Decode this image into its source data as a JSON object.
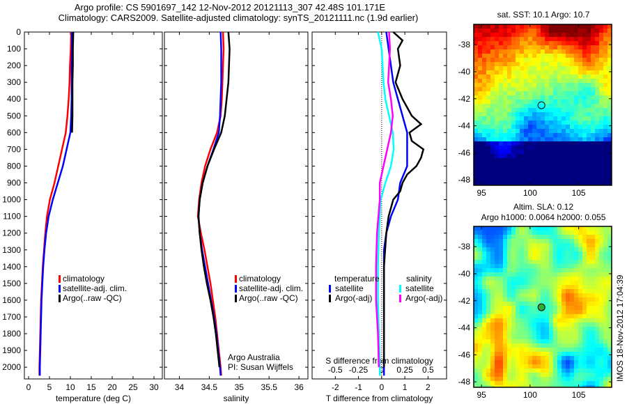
{
  "title_line1": "Argo profile: CS 5901697_142 12-Nov-2012 20121113_307 42.48S 101.171E",
  "title_line2": "Climatology: CARS2009. Satellite-adjusted climatology: synTS_20121111.nc (1.9d earlier)",
  "colors": {
    "climatology": "#ff0000",
    "satellite": "#0000ff",
    "argo": "#000000",
    "sal_satellite": "#00ffff",
    "sal_argo": "#ff00ff"
  },
  "chart_data": [
    {
      "type": "line",
      "xlabel": "temperature (deg C)",
      "ylabel": "",
      "xlim": [
        -1,
        32
      ],
      "ylim": [
        2070,
        0
      ],
      "xticks": [
        "0",
        "5",
        "10",
        "15",
        "20",
        "25",
        "30"
      ],
      "yticks": [
        "0",
        "100",
        "200",
        "300",
        "400",
        "500",
        "600",
        "700",
        "800",
        "900",
        "1000",
        "1100",
        "1200",
        "1300",
        "1400",
        "1500",
        "1600",
        "1700",
        "1800",
        "1900",
        "2000"
      ],
      "legend": [
        "climatology",
        "satellite-adj. clim.",
        "Argo(..raw -QC)"
      ],
      "series": [
        {
          "name": "climatology",
          "depth": [
            0,
            100,
            200,
            300,
            400,
            500,
            600,
            700,
            800,
            900,
            1000,
            1100,
            1200,
            1300,
            1400,
            1500,
            1600,
            1700,
            1800,
            1900,
            2000,
            2050
          ],
          "values": [
            10.2,
            10.1,
            9.9,
            9.8,
            9.6,
            9.3,
            8.9,
            8.0,
            7.1,
            6.2,
            5.1,
            4.4,
            4.0,
            3.7,
            3.4,
            3.2,
            3.0,
            2.9,
            2.8,
            2.7,
            2.6,
            2.6
          ]
        },
        {
          "name": "satellite-adj. clim.",
          "depth": [
            0,
            100,
            200,
            300,
            400,
            500,
            600,
            700,
            800,
            900,
            1000,
            1100,
            1200,
            1300,
            1400,
            1500,
            1600,
            1700,
            1800,
            1900,
            2000,
            2050
          ],
          "values": [
            10.4,
            10.4,
            10.3,
            10.3,
            10.3,
            10.2,
            10.0,
            9.1,
            8.2,
            7.0,
            5.8,
            4.8,
            4.2,
            3.8,
            3.5,
            3.3,
            3.1,
            3.0,
            2.9,
            2.8,
            2.7,
            2.7
          ]
        },
        {
          "name": "Argo(..raw -QC)",
          "depth": [
            0,
            100,
            200,
            300,
            400,
            500,
            600
          ],
          "values": [
            10.7,
            10.6,
            10.6,
            10.5,
            10.5,
            10.5,
            10.4
          ]
        }
      ]
    },
    {
      "type": "line",
      "xlabel": "salinity",
      "xlim": [
        33.75,
        36.15
      ],
      "ylim": [
        2070,
        0
      ],
      "xticks": [
        "34",
        "34.5",
        "35",
        "35.5",
        "36"
      ],
      "legend": [
        "climatology",
        "satellite-adj. clim.",
        "Argo(..raw -QC)"
      ],
      "annotation": [
        "Argo Australia",
        "PI: Susan Wijffels"
      ],
      "series": [
        {
          "name": "climatology",
          "depth": [
            0,
            100,
            200,
            300,
            400,
            500,
            600,
            700,
            800,
            900,
            1000,
            1100,
            1200,
            1300,
            1400,
            1500,
            1600,
            1700,
            1800,
            1900,
            2000,
            2050
          ],
          "values": [
            34.73,
            34.74,
            34.73,
            34.72,
            34.71,
            34.69,
            34.63,
            34.52,
            34.43,
            34.37,
            34.33,
            34.31,
            34.36,
            34.42,
            34.47,
            34.52,
            34.56,
            34.6,
            34.63,
            34.66,
            34.69,
            34.7
          ]
        },
        {
          "name": "satellite-adj. clim.",
          "depth": [
            0,
            100,
            200,
            300,
            400,
            500,
            600,
            700,
            800,
            900,
            1000,
            1100,
            1200,
            1300,
            1400,
            1500,
            1600,
            1700,
            1800,
            1900,
            2000,
            2050
          ],
          "values": [
            34.69,
            34.7,
            34.7,
            34.7,
            34.69,
            34.68,
            34.66,
            34.57,
            34.47,
            34.39,
            34.34,
            34.32,
            34.34,
            34.38,
            34.43,
            34.48,
            34.53,
            34.58,
            34.62,
            34.65,
            34.68,
            34.69
          ]
        },
        {
          "name": "Argo(..raw -QC)",
          "depth": [
            0,
            100,
            200,
            300,
            400,
            500,
            600,
            700,
            800,
            900,
            1000,
            1100,
            1200,
            1300,
            1400,
            1500,
            1600,
            1700,
            1800,
            1900,
            2000
          ],
          "values": [
            34.82,
            34.84,
            34.83,
            34.82,
            34.79,
            34.76,
            34.7,
            34.58,
            34.47,
            34.39,
            34.34,
            34.32,
            34.34,
            34.37,
            34.41,
            34.46,
            34.52,
            34.57,
            34.61,
            34.64,
            34.67
          ]
        }
      ]
    },
    {
      "type": "line",
      "xlabel": "T difference from climatology",
      "x2label": "S difference from climatology",
      "xlim": [
        -3,
        2.8
      ],
      "ylim": [
        2070,
        0
      ],
      "xticks": [
        "-2",
        "-1",
        "0",
        "1",
        "2"
      ],
      "x2ticks": [
        "-0.5",
        "-0.25",
        "0",
        "0.25",
        "0.5"
      ],
      "legend_titles": [
        "temperature",
        "salinity"
      ],
      "legend": [
        "satellite",
        "Argo(-adj)",
        "satellite",
        "Argo(-adj)"
      ],
      "series": [
        {
          "name": "temperature satellite",
          "depth": [
            0,
            100,
            200,
            300,
            400,
            500,
            600,
            700,
            800,
            900,
            1000,
            1100,
            1200,
            1300,
            1400,
            1500,
            1600,
            1700,
            1800,
            1900,
            2000,
            2050
          ],
          "values": [
            0.2,
            0.3,
            0.4,
            0.5,
            0.7,
            0.9,
            1.1,
            1.1,
            1.1,
            0.8,
            0.7,
            0.4,
            0.2,
            0.1,
            0.1,
            0.1,
            0.1,
            0.1,
            0.1,
            0.1,
            0.1,
            0.1
          ]
        },
        {
          "name": "temperature Argo(-adj)",
          "depth": [
            0,
            50,
            100,
            200,
            300,
            400,
            500,
            550,
            600,
            650,
            700,
            750,
            800,
            850,
            900,
            950,
            1000,
            1100,
            1200,
            1300,
            1400,
            1500,
            1600,
            1700,
            1800,
            1900,
            2000
          ],
          "values": [
            0.5,
            0.9,
            0.7,
            0.8,
            0.6,
            0.9,
            1.3,
            1.7,
            1.2,
            1.3,
            1.8,
            1.7,
            1.5,
            1.1,
            0.9,
            0.8,
            0.5,
            0.3,
            0.2,
            0.15,
            0.1,
            0.1,
            0.1,
            0.1,
            0.1,
            0.1,
            0.1
          ]
        },
        {
          "name": "salinity satellite",
          "depth": [
            0,
            100,
            200,
            300,
            400,
            500,
            600,
            700,
            800,
            900,
            1000,
            1200,
            1400,
            1600,
            1800,
            2000,
            2050
          ],
          "values": [
            -0.04,
            0.0,
            0.01,
            0.02,
            0.04,
            0.08,
            0.12,
            0.13,
            0.1,
            0.04,
            -0.01,
            -0.03,
            -0.04,
            -0.04,
            -0.03,
            -0.02,
            -0.02
          ]
        },
        {
          "name": "salinity Argo(-adj)",
          "depth": [
            0,
            100,
            200,
            300,
            400,
            500,
            600,
            700,
            800,
            900,
            1000,
            1200,
            1400,
            1600,
            1800,
            2000
          ],
          "values": [
            0.08,
            0.09,
            0.08,
            0.07,
            0.1,
            0.12,
            0.1,
            0.06,
            0.02,
            -0.02,
            -0.02,
            -0.05,
            -0.06,
            -0.06,
            -0.04,
            -0.03
          ]
        }
      ]
    },
    {
      "type": "heatmap",
      "title": "sat. SST: 10.1 Argo: 10.7",
      "xticks": [
        "95",
        "100",
        "105"
      ],
      "yticks": [
        "-38",
        "-40",
        "-42",
        "-44",
        "-46",
        "-48"
      ],
      "xlim": [
        94.2,
        108.4
      ],
      "ylim": [
        -48.4,
        -36.5
      ],
      "marker": {
        "lon": 101.171,
        "lat": -42.48
      }
    },
    {
      "type": "heatmap",
      "title_line1": "Altim. SLA: 0.12",
      "title_line2": "Argo h1000: 0.0064 h2000: 0.055",
      "xticks": [
        "95",
        "100",
        "105"
      ],
      "yticks": [
        "-38",
        "-40",
        "-42",
        "-44",
        "-46",
        "-48"
      ],
      "xlim": [
        94.2,
        108.4
      ],
      "ylim": [
        -48.4,
        -36.5
      ],
      "marker": {
        "lon": 101.171,
        "lat": -42.48
      }
    }
  ],
  "side_label": "IMOS 18-Nov-2012 17:04:39"
}
